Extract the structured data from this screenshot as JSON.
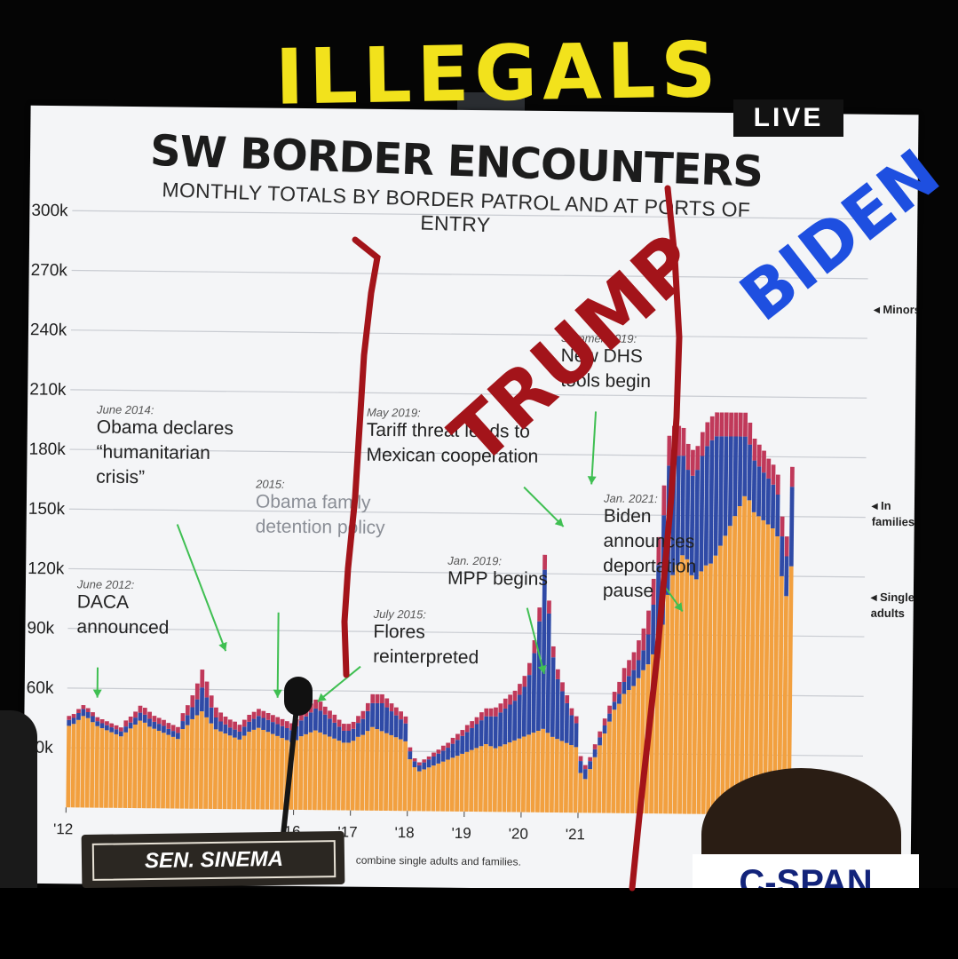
{
  "overlay": {
    "live_label": "LIVE",
    "nameplate": "SEN. SINEMA",
    "broadcaster": "C-SPAN",
    "scrawl_top": "ILLEGALS",
    "scrawl_left": "TRUMP",
    "scrawl_right": "BIDEN",
    "colors": {
      "yellow_scrawl": "#f2e21c",
      "red_scrawl": "#a3141a",
      "blue_scrawl": "#1e4fe0"
    }
  },
  "chart_data": {
    "type": "bar",
    "stacked": true,
    "title": "SW BORDER ENCOUNTERS",
    "subtitle": "MONTHLY TOTALS BY BORDER PATROL AND AT PORTS OF ENTRY",
    "ylim": [
      0,
      300000
    ],
    "y_ticks": [
      "300k",
      "270k",
      "240k",
      "210k",
      "180k",
      "150k",
      "120k",
      "90k",
      "60k",
      "30k"
    ],
    "x_ticks": [
      "'12",
      "'16",
      "'17",
      "'18",
      "'19",
      "'20",
      "'21"
    ],
    "x_start": "2012-01",
    "footnote": "combine single adults and families.",
    "colors": {
      "single_adults": "#f2a03f",
      "in_families": "#2f4aa6",
      "minors": "#c0395a"
    },
    "legend": [
      "Minors",
      "In families",
      "Single adults"
    ],
    "annotations": [
      {
        "date": "June 2012:",
        "text": "DACA announced"
      },
      {
        "date": "June 2014:",
        "text": "Obama declares “humanitarian crisis”"
      },
      {
        "date": "2015:",
        "text": "Obama family detention policy"
      },
      {
        "date": "July 2015:",
        "text": "Flores reinterpreted"
      },
      {
        "date": "May 2019:",
        "text": "Tariff threat leads to Mexican cooperation"
      },
      {
        "date": "Jan. 2019:",
        "text": "MPP begins"
      },
      {
        "date": "Summer 2019:",
        "text": "New DHS tools begin"
      },
      {
        "date": "Jan. 2021:",
        "text": "Biden announces deportation pause"
      }
    ],
    "series": [
      {
        "name": "Single adults",
        "values": [
          41000,
          42000,
          44000,
          46000,
          45000,
          43000,
          41000,
          40000,
          39000,
          38000,
          37000,
          36000,
          38000,
          40000,
          42000,
          44000,
          43000,
          41000,
          40000,
          39000,
          38000,
          37000,
          36000,
          35000,
          40000,
          42000,
          45000,
          47000,
          49000,
          46000,
          43000,
          40000,
          39000,
          38000,
          37000,
          36000,
          35000,
          37000,
          39000,
          40000,
          41000,
          40000,
          39000,
          38000,
          37000,
          36000,
          35000,
          34000,
          35000,
          37000,
          38000,
          39000,
          40000,
          39000,
          38000,
          37000,
          36000,
          35000,
          34000,
          34000,
          35000,
          37000,
          38000,
          40000,
          42000,
          41000,
          40000,
          39000,
          38000,
          37000,
          36000,
          35000,
          26000,
          22000,
          20000,
          21000,
          22000,
          23000,
          24000,
          25000,
          26000,
          27000,
          28000,
          29000,
          30000,
          31000,
          32000,
          33000,
          34000,
          33000,
          32000,
          33000,
          34000,
          35000,
          36000,
          37000,
          38000,
          39000,
          40000,
          41000,
          42000,
          40000,
          38000,
          37000,
          36000,
          35000,
          34000,
          33000,
          20000,
          17000,
          22000,
          28000,
          34000,
          40000,
          46000,
          52000,
          55000,
          60000,
          62000,
          64000,
          68000,
          72000,
          75000,
          80000,
          85000,
          95000,
          110000,
          120000,
          125000,
          130000,
          128000,
          120000,
          118000,
          122000,
          125000,
          126000,
          130000,
          135000,
          140000,
          145000,
          150000,
          155000,
          160000,
          158000,
          152000,
          150000,
          148000,
          146000,
          144000,
          140000,
          120000,
          110000,
          125000
        ]
      },
      {
        "name": "In families",
        "values": [
          3000,
          3000,
          3500,
          3500,
          3000,
          3000,
          2500,
          2500,
          2500,
          2500,
          2500,
          2500,
          3000,
          3000,
          3500,
          4000,
          4000,
          4000,
          3500,
          3500,
          3500,
          3000,
          3000,
          3000,
          4000,
          5000,
          6000,
          8000,
          12000,
          10000,
          8000,
          6000,
          5000,
          4500,
          4000,
          4000,
          4000,
          4500,
          5000,
          5500,
          6000,
          6000,
          6000,
          6000,
          6000,
          6000,
          6000,
          6000,
          7000,
          8000,
          9000,
          10000,
          11000,
          11000,
          10000,
          9000,
          8000,
          7000,
          6000,
          6000,
          6000,
          7000,
          8000,
          10000,
          12000,
          13000,
          14000,
          13000,
          12000,
          11000,
          10000,
          9000,
          4000,
          3000,
          3000,
          3500,
          4000,
          4500,
          5000,
          5500,
          6000,
          7000,
          8000,
          9000,
          10000,
          11000,
          12000,
          13000,
          14000,
          15000,
          16000,
          17000,
          18000,
          19000,
          20000,
          22000,
          25000,
          30000,
          40000,
          55000,
          80000,
          60000,
          40000,
          30000,
          25000,
          20000,
          15000,
          12000,
          6000,
          5000,
          4000,
          4000,
          4000,
          4000,
          4000,
          4000,
          5000,
          6000,
          7000,
          8000,
          9000,
          10000,
          15000,
          25000,
          40000,
          55000,
          65000,
          60000,
          55000,
          50000,
          45000,
          50000,
          55000,
          58000,
          60000,
          62000,
          60000,
          55000,
          50000,
          45000,
          40000,
          35000,
          30000,
          28000,
          26000,
          25000,
          24000,
          23000,
          22000,
          21000,
          20000,
          20000,
          40000,
          55000
        ]
      },
      {
        "name": "Minors",
        "values": [
          2000,
          2000,
          2000,
          2000,
          2000,
          2000,
          2000,
          2000,
          2000,
          2000,
          2000,
          2000,
          3000,
          3000,
          3000,
          3500,
          3500,
          3500,
          3000,
          3000,
          3000,
          3000,
          3000,
          3000,
          4000,
          5000,
          6000,
          8000,
          9000,
          8000,
          6000,
          5000,
          4500,
          4000,
          4000,
          4000,
          3500,
          3500,
          3500,
          3500,
          3500,
          3500,
          3500,
          3500,
          3500,
          3500,
          3500,
          3500,
          3500,
          4000,
          4000,
          4500,
          4500,
          4500,
          4000,
          4000,
          4000,
          3500,
          3500,
          3500,
          3500,
          3500,
          4000,
          4000,
          4500,
          4500,
          4500,
          4500,
          4000,
          4000,
          4000,
          3500,
          2000,
          1500,
          1500,
          1500,
          1500,
          2000,
          2000,
          2500,
          2500,
          3000,
          3000,
          3000,
          3500,
          3500,
          3500,
          4000,
          4000,
          4000,
          4500,
          4500,
          5000,
          5000,
          5000,
          5500,
          5500,
          6000,
          6500,
          7000,
          7500,
          6500,
          5500,
          5000,
          4500,
          4000,
          3500,
          3500,
          2500,
          2000,
          2000,
          2500,
          3000,
          3500,
          4000,
          5000,
          6000,
          7000,
          8000,
          9000,
          10000,
          11000,
          12000,
          13000,
          14000,
          15000,
          15000,
          15000,
          15000,
          14000,
          13000,
          13000,
          12000,
          12000,
          12000,
          12000,
          12000,
          12000,
          12000,
          12000,
          12000,
          12000,
          12000,
          11000,
          11000,
          11000,
          11000,
          10000,
          10000,
          10000,
          10000,
          10000,
          10000,
          10000
        ]
      }
    ]
  }
}
